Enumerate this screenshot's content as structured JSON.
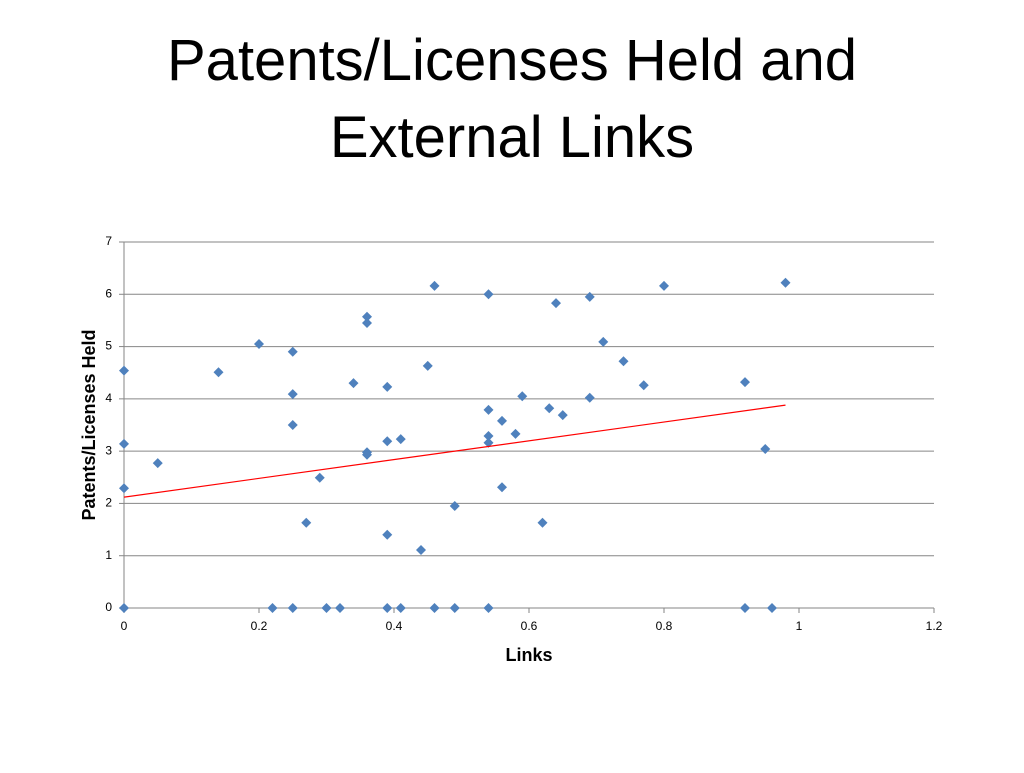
{
  "chart_data": {
    "type": "scatter",
    "title": [
      "Patents/Licenses Held and",
      "External Links"
    ],
    "x_label": "Links",
    "y_label": "Patents/Licenses Held",
    "xlim": [
      0,
      1.2
    ],
    "ylim": [
      0,
      7
    ],
    "xticks": [
      0,
      0.2,
      0.4,
      0.6,
      0.8,
      1,
      1.2
    ],
    "yticks": [
      0,
      1,
      2,
      3,
      4,
      5,
      6,
      7
    ],
    "grid": true,
    "series": [
      {
        "color": "#4f81bd",
        "x": [
          0,
          0,
          0,
          0,
          0.05,
          0.14,
          0.2,
          0.22,
          0.25,
          0.25,
          0.25,
          0.25,
          0.27,
          0.29,
          0.3,
          0.32,
          0.34,
          0.36,
          0.36,
          0.36,
          0.36,
          0.39,
          0.39,
          0.39,
          0.39,
          0.41,
          0.41,
          0.44,
          0.45,
          0.46,
          0.46,
          0.49,
          0.49,
          0.54,
          0.54,
          0.54,
          0.54,
          0.54,
          0.56,
          0.56,
          0.58,
          0.59,
          0.62,
          0.63,
          0.64,
          0.65,
          0.69,
          0.69,
          0.71,
          0.74,
          0.77,
          0.8,
          0.92,
          0.92,
          0.95,
          0.96,
          0.98
        ],
        "values": [
          4.54,
          3.14,
          2.29,
          0,
          2.77,
          4.51,
          5.05,
          0,
          4.9,
          4.09,
          3.5,
          0,
          1.63,
          2.49,
          0,
          0,
          4.3,
          5.57,
          5.45,
          2.98,
          2.93,
          4.23,
          3.19,
          1.4,
          0,
          3.23,
          0,
          1.11,
          4.63,
          6.16,
          0,
          1.95,
          0,
          6.0,
          3.79,
          3.29,
          3.16,
          0,
          3.58,
          2.31,
          3.33,
          4.05,
          1.63,
          3.82,
          5.83,
          3.69,
          5.95,
          4.02,
          5.09,
          4.72,
          4.26,
          6.16,
          4.32,
          0,
          3.04,
          0,
          6.22
        ]
      }
    ],
    "trendline": {
      "color": "#ff0000",
      "x": [
        0,
        0.98
      ],
      "values": [
        2.12,
        3.88
      ]
    }
  }
}
